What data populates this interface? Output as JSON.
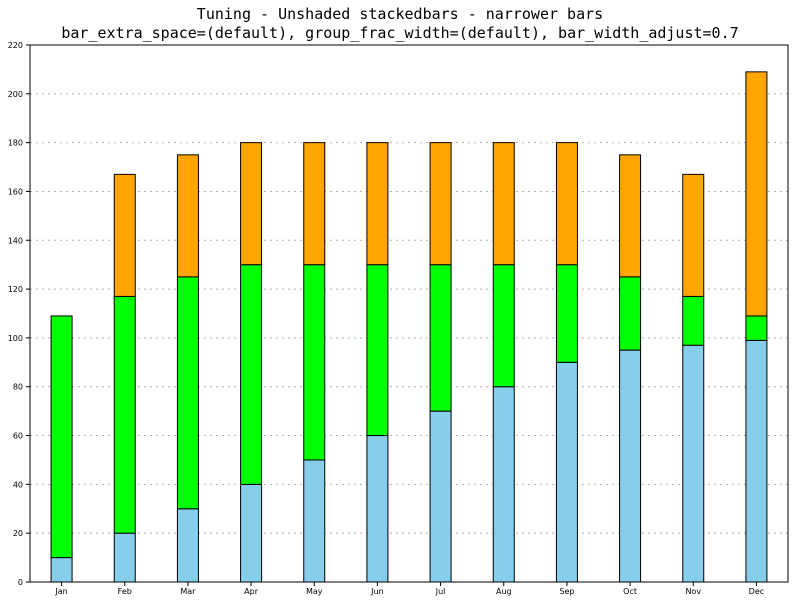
{
  "chart_data": {
    "type": "bar",
    "stacked": true,
    "title": "Tuning - Unshaded stackedbars - narrower bars",
    "subtitle": "bar_extra_space=(default), group_frac_width=(default), bar_width_adjust=0.7",
    "xlabel": "",
    "ylabel": "",
    "ylim": [
      0,
      220
    ],
    "ytick_step": 20,
    "yticks": [
      "0",
      "20",
      "40",
      "60",
      "80",
      "100",
      "120",
      "140",
      "160",
      "180",
      "200",
      "220"
    ],
    "grid": true,
    "categories": [
      "Jan",
      "Feb",
      "Mar",
      "Apr",
      "May",
      "Jun",
      "Jul",
      "Aug",
      "Sep",
      "Oct",
      "Nov",
      "Dec"
    ],
    "series": [
      {
        "color": "#87ceeb",
        "values": [
          10,
          20,
          30,
          40,
          50,
          60,
          70,
          80,
          90,
          95,
          97,
          99
        ]
      },
      {
        "color": "#00ff00",
        "values": [
          99,
          97,
          95,
          90,
          80,
          70,
          60,
          50,
          40,
          30,
          20,
          10
        ]
      },
      {
        "color": "#ffa500",
        "values": [
          0,
          50,
          50,
          50,
          50,
          50,
          50,
          50,
          50,
          50,
          50,
          100
        ]
      }
    ]
  }
}
